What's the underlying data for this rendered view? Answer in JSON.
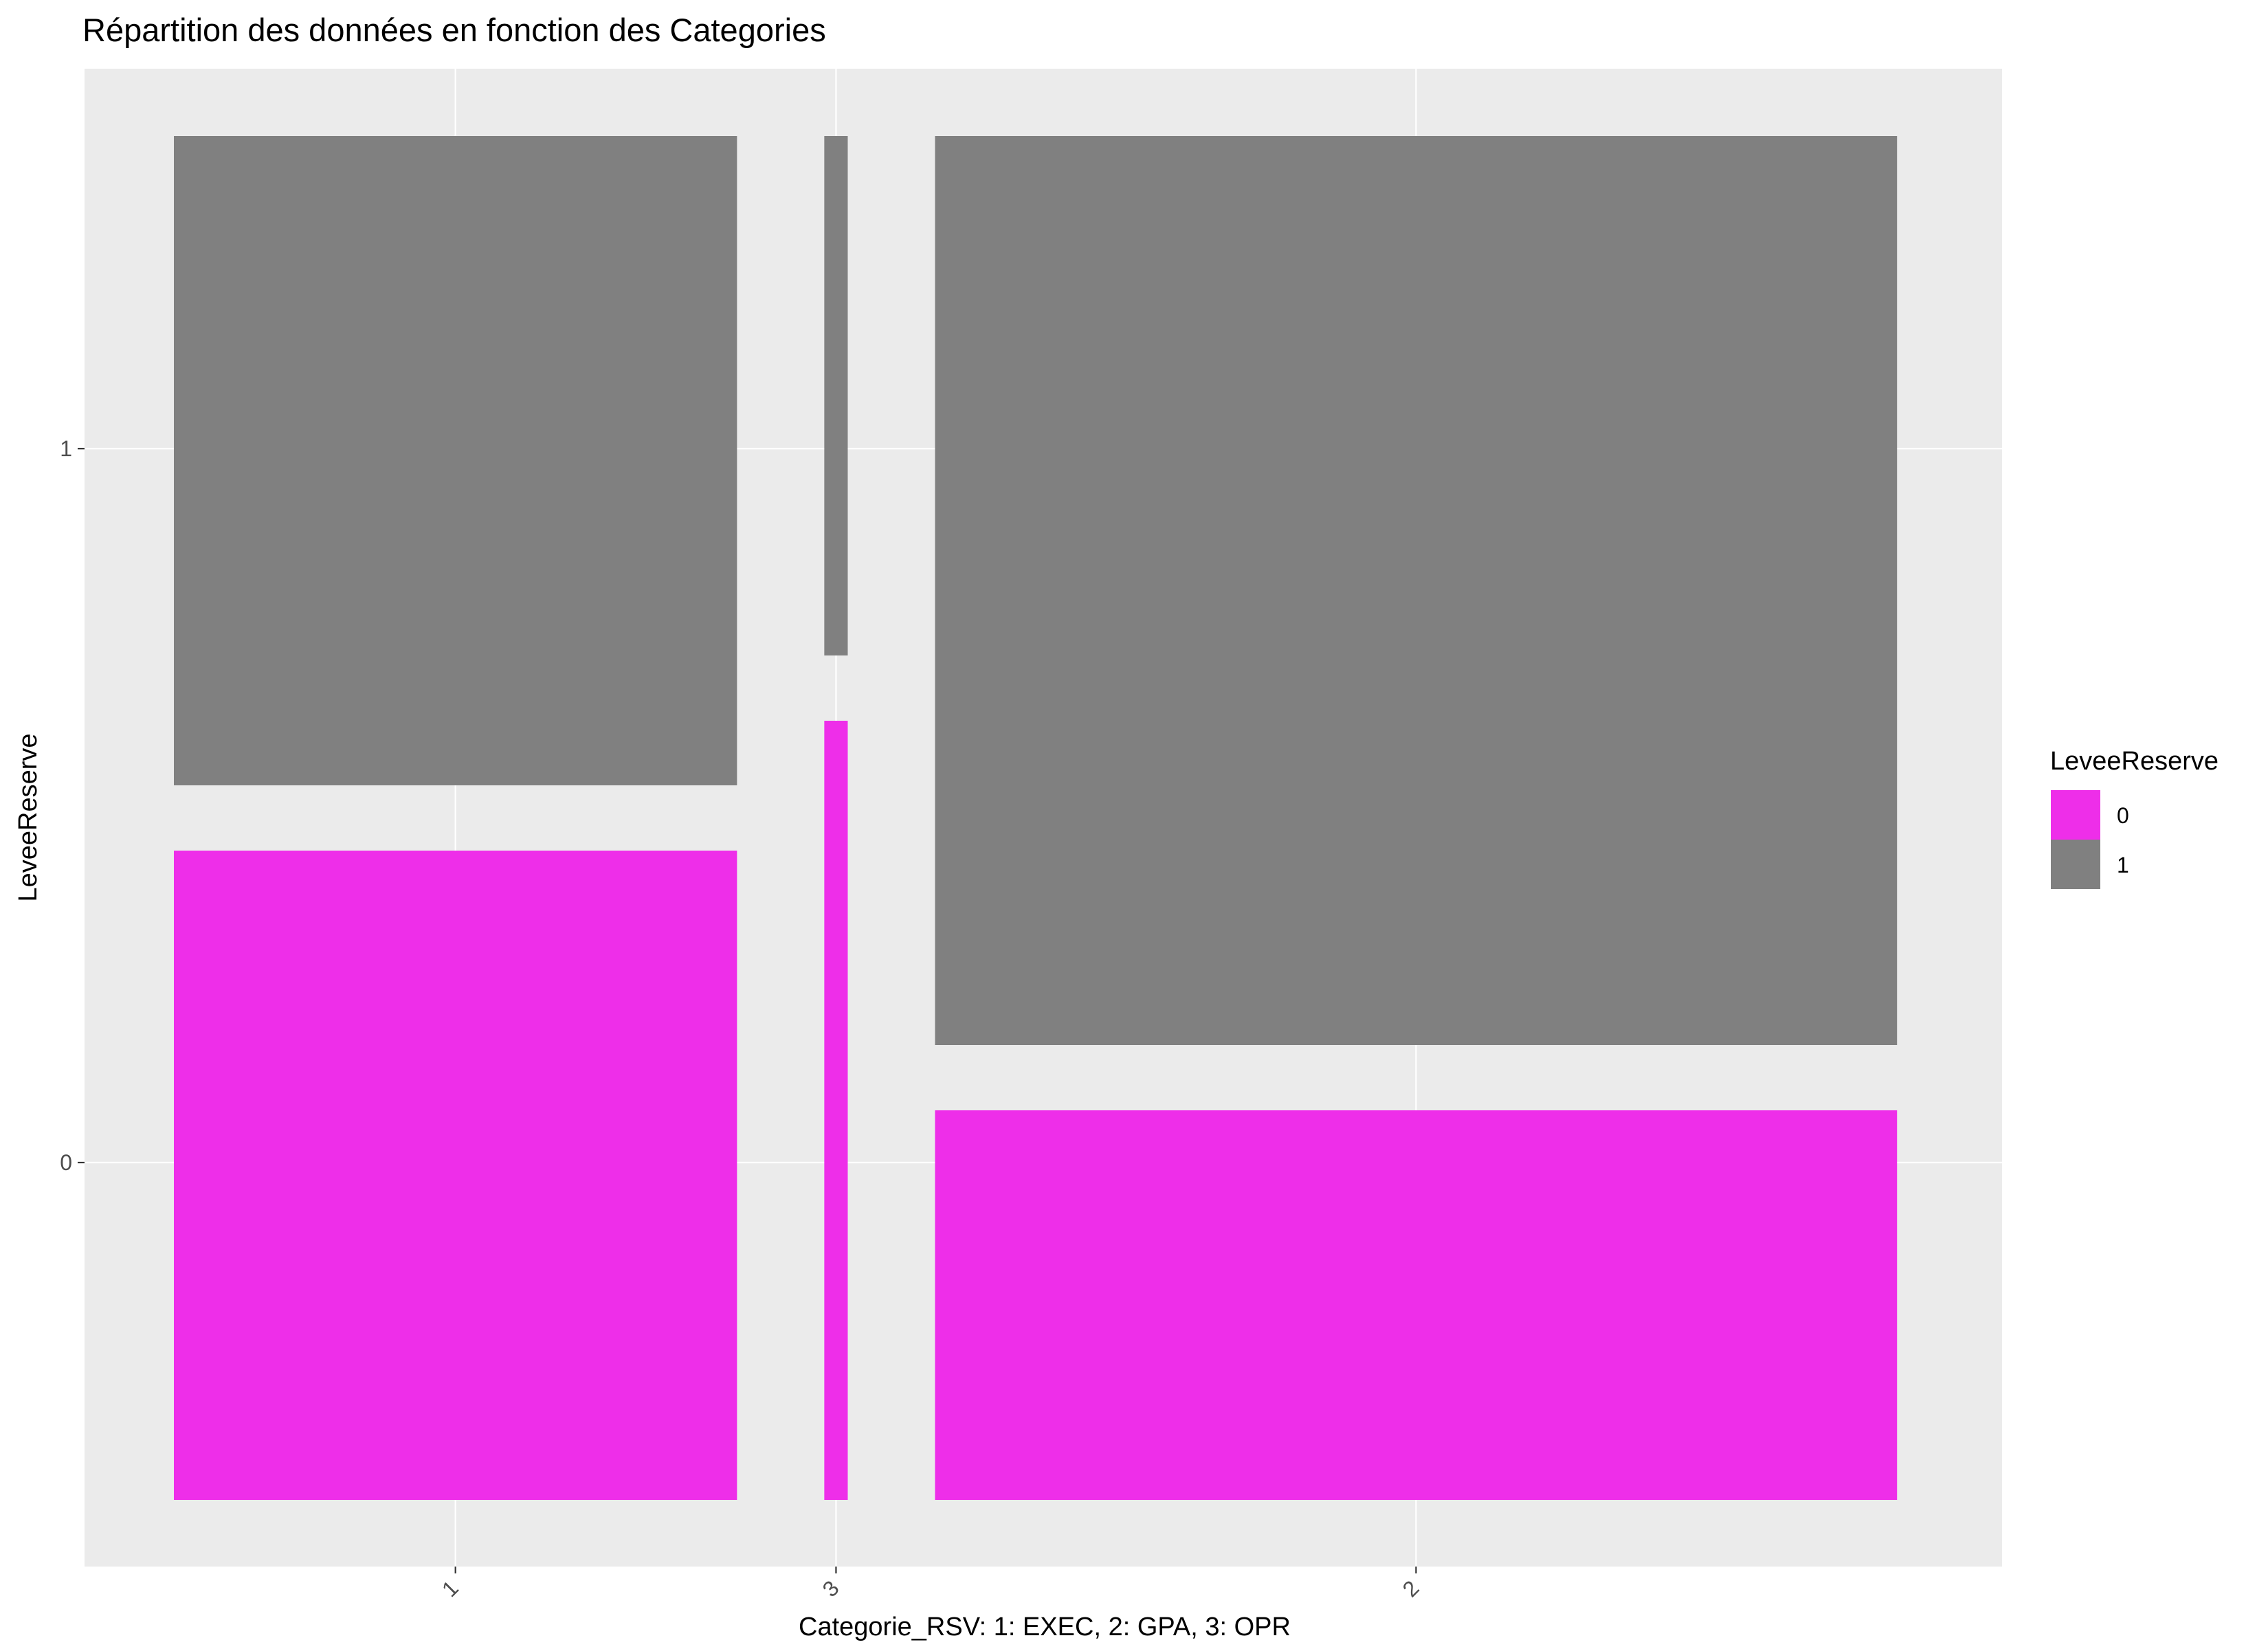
{
  "chart_data": {
    "type": "mosaic",
    "title": "Répartition des données en fonction des Categories",
    "xlabel": "Categorie_RSV: 1: EXEC, 2: GPA, 3: OPR",
    "ylabel": "LeveeReserve",
    "x_categories": [
      "1",
      "3",
      "2"
    ],
    "x_category_widths": [
      0.36,
      0.015,
      0.615
    ],
    "y_ticks": [
      "0",
      "1"
    ],
    "fill_levels": [
      "0",
      "1"
    ],
    "proportions": {
      "1": {
        "0": 0.5,
        "1": 0.5
      },
      "3": {
        "0": 0.6,
        "1": 0.4
      },
      "2": {
        "0": 0.3,
        "1": 0.7
      }
    },
    "colors": {
      "0": "#ee2ee9",
      "1": "#808080",
      "panel": "#ebebeb",
      "grid": "#ffffff"
    },
    "legend": {
      "title": "LeveeReserve",
      "placement": "right",
      "entries": [
        "0",
        "1"
      ]
    },
    "grid": true
  }
}
